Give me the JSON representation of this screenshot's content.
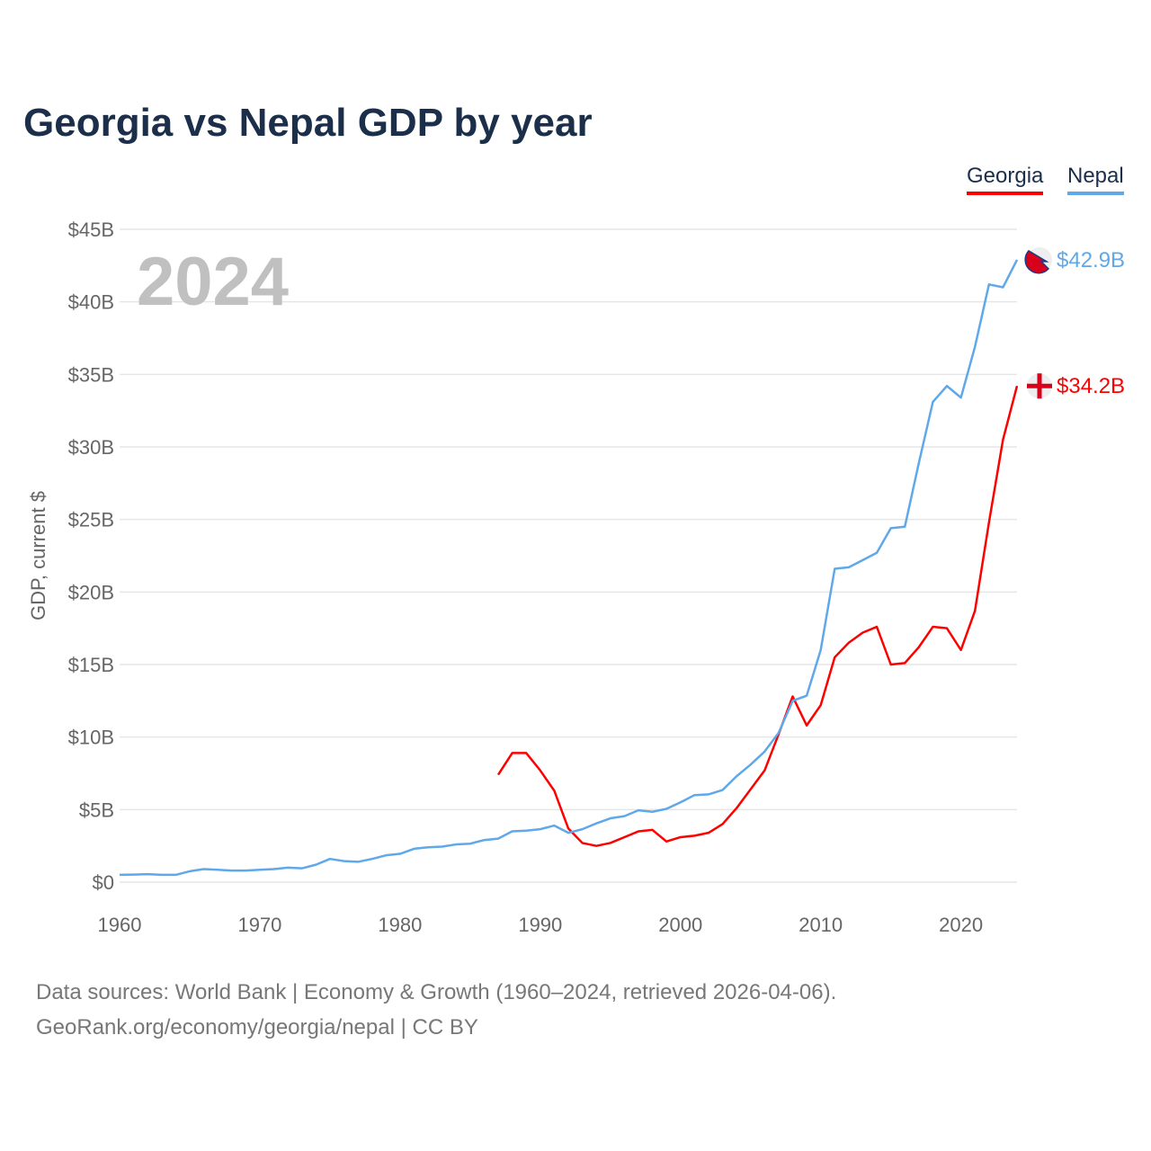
{
  "chart_data": {
    "type": "line",
    "title": "Georgia vs Nepal GDP by year",
    "ylabel": "GDP, current $",
    "xlabel": "",
    "xlim": [
      1960,
      2024
    ],
    "ylim": [
      0,
      45
    ],
    "yticks": [
      0,
      5,
      10,
      15,
      20,
      25,
      30,
      35,
      40,
      45
    ],
    "ytick_labels": [
      "$0",
      "$5B",
      "$10B",
      "$15B",
      "$20B",
      "$25B",
      "$30B",
      "$35B",
      "$40B",
      "$45B"
    ],
    "xticks": [
      1960,
      1970,
      1980,
      1990,
      2000,
      2010,
      2020
    ],
    "xtick_labels": [
      "1960",
      "1970",
      "1980",
      "1990",
      "2000",
      "2010",
      "2020"
    ],
    "grid": true,
    "legend_placement": "top-right",
    "year_label": "2024",
    "series": [
      {
        "name": "Georgia",
        "color": "#ff0000",
        "end_label": "$34.2B",
        "flag": "georgia-flag",
        "start": 1987,
        "values": [
          7.4,
          8.9,
          8.9,
          7.7,
          6.3,
          3.7,
          2.7,
          2.5,
          2.7,
          3.1,
          3.5,
          3.6,
          2.8,
          3.1,
          3.2,
          3.4,
          4.0,
          5.1,
          6.4,
          7.7,
          10.2,
          12.8,
          10.8,
          12.2,
          15.5,
          16.5,
          17.2,
          17.6,
          15.0,
          15.1,
          16.2,
          17.6,
          17.5,
          16.0,
          18.7,
          24.8,
          30.5,
          34.2
        ]
      },
      {
        "name": "Nepal",
        "color": "#5fa8ea",
        "end_label": "$42.9B",
        "flag": "nepal-flag",
        "start": 1960,
        "values": [
          0.5,
          0.52,
          0.55,
          0.5,
          0.5,
          0.75,
          0.9,
          0.85,
          0.8,
          0.8,
          0.85,
          0.9,
          1.0,
          0.95,
          1.2,
          1.6,
          1.45,
          1.4,
          1.6,
          1.85,
          1.95,
          2.3,
          2.4,
          2.45,
          2.6,
          2.65,
          2.9,
          3.0,
          3.5,
          3.55,
          3.65,
          3.9,
          3.4,
          3.65,
          4.05,
          4.4,
          4.55,
          4.95,
          4.85,
          5.05,
          5.5,
          6.0,
          6.05,
          6.35,
          7.3,
          8.1,
          9.0,
          10.3,
          12.5,
          12.85,
          16.0,
          21.6,
          21.7,
          22.2,
          22.7,
          24.4,
          24.5,
          28.9,
          33.1,
          34.2,
          33.4,
          36.9,
          41.2,
          41.0,
          42.9
        ]
      }
    ]
  },
  "footer": {
    "line1": "Data sources: World Bank | Economy & Growth (1960–2024, retrieved 2026-04-06).",
    "line2": "GeoRank.org/economy/georgia/nepal | CC BY"
  }
}
